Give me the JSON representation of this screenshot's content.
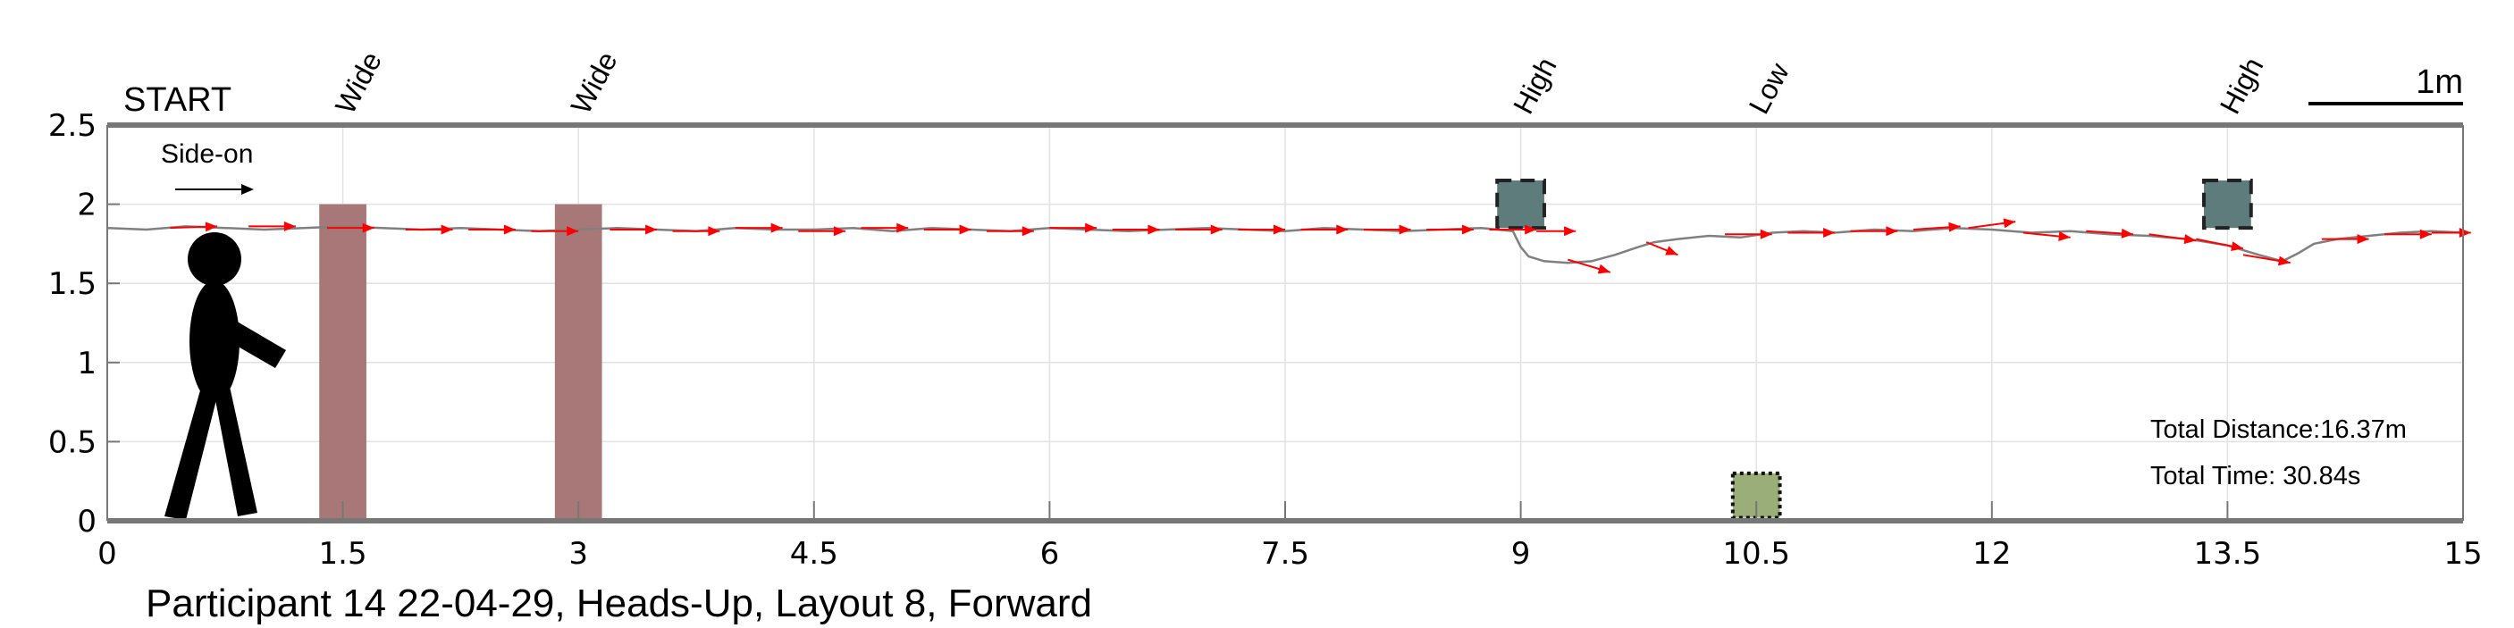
{
  "chart_data": {
    "type": "line",
    "title": "Participant 14 22-04-29, Heads-Up, Layout 8, Forward",
    "xlim": [
      0,
      15
    ],
    "ylim": [
      0,
      2.5
    ],
    "x_ticks": [
      0,
      1.5,
      3,
      4.5,
      6,
      7.5,
      9,
      10.5,
      12,
      13.5,
      15
    ],
    "x_tick_labels": [
      "0",
      "1.5",
      "3",
      "4.5",
      "6",
      "7.5",
      "9",
      "10.5",
      "12",
      "13.5",
      "15"
    ],
    "y_ticks": [
      0,
      0.5,
      1,
      1.5,
      2,
      2.5
    ],
    "y_tick_labels": [
      "0",
      "0.5",
      "1",
      "1.5",
      "2",
      "2.5"
    ],
    "grid": true,
    "start_label": "START",
    "direction_label": "Side-on",
    "scale_bar_label": "1m",
    "scale_bar_length": 1,
    "trajectory": {
      "x": [
        0,
        0.25,
        0.5,
        0.75,
        1,
        1.25,
        1.5,
        1.75,
        2,
        2.25,
        2.5,
        2.75,
        3,
        3.25,
        3.5,
        3.75,
        4,
        4.25,
        4.5,
        4.75,
        5,
        5.25,
        5.5,
        5.75,
        6,
        6.25,
        6.5,
        6.75,
        7,
        7.25,
        7.5,
        7.75,
        8,
        8.25,
        8.5,
        8.75,
        8.95,
        9.0,
        9.05,
        9.15,
        9.3,
        9.45,
        9.6,
        9.75,
        9.85,
        10.0,
        10.2,
        10.4,
        10.6,
        10.8,
        11.0,
        11.25,
        11.5,
        11.75,
        12.0,
        12.25,
        12.5,
        12.75,
        13.0,
        13.25,
        13.5,
        13.7,
        13.85,
        13.95,
        14.05,
        14.2,
        14.4,
        14.6,
        14.8,
        15.0
      ],
      "y": [
        1.85,
        1.84,
        1.86,
        1.85,
        1.84,
        1.85,
        1.86,
        1.85,
        1.84,
        1.85,
        1.84,
        1.83,
        1.84,
        1.85,
        1.84,
        1.83,
        1.85,
        1.84,
        1.84,
        1.85,
        1.83,
        1.85,
        1.84,
        1.83,
        1.85,
        1.84,
        1.83,
        1.84,
        1.85,
        1.84,
        1.83,
        1.85,
        1.84,
        1.83,
        1.84,
        1.85,
        1.83,
        1.73,
        1.67,
        1.64,
        1.63,
        1.64,
        1.68,
        1.73,
        1.76,
        1.78,
        1.8,
        1.79,
        1.82,
        1.83,
        1.82,
        1.84,
        1.83,
        1.85,
        1.84,
        1.82,
        1.83,
        1.81,
        1.8,
        1.78,
        1.74,
        1.68,
        1.64,
        1.69,
        1.75,
        1.78,
        1.8,
        1.82,
        1.83,
        1.82
      ]
    },
    "velocity_arrows": [
      [
        0.4,
        1.85,
        0.3,
        0.01
      ],
      [
        0.9,
        1.86,
        0.3,
        0.0
      ],
      [
        1.4,
        1.85,
        0.3,
        0.0
      ],
      [
        1.9,
        1.84,
        0.3,
        0.0
      ],
      [
        2.3,
        1.84,
        0.3,
        0.0
      ],
      [
        2.7,
        1.83,
        0.3,
        0.0
      ],
      [
        3.2,
        1.84,
        0.3,
        0.0
      ],
      [
        3.6,
        1.83,
        0.3,
        0.0
      ],
      [
        4.0,
        1.85,
        0.3,
        0.0
      ],
      [
        4.4,
        1.83,
        0.3,
        0.0
      ],
      [
        4.8,
        1.85,
        0.3,
        0.0
      ],
      [
        5.2,
        1.84,
        0.3,
        0.0
      ],
      [
        5.6,
        1.83,
        0.3,
        0.0
      ],
      [
        6.0,
        1.85,
        0.3,
        0.0
      ],
      [
        6.4,
        1.84,
        0.3,
        0.0
      ],
      [
        6.8,
        1.84,
        0.3,
        0.0
      ],
      [
        7.2,
        1.84,
        0.3,
        0.0
      ],
      [
        7.6,
        1.84,
        0.3,
        0.0
      ],
      [
        8.0,
        1.84,
        0.3,
        0.0
      ],
      [
        8.4,
        1.84,
        0.3,
        0.0
      ],
      [
        8.8,
        1.84,
        0.3,
        0.0
      ],
      [
        9.1,
        1.83,
        0.25,
        0.0
      ],
      [
        9.3,
        1.65,
        0.27,
        -0.08
      ],
      [
        9.8,
        1.76,
        0.2,
        -0.08
      ],
      [
        10.3,
        1.81,
        0.3,
        0.0
      ],
      [
        10.7,
        1.82,
        0.3,
        0.0
      ],
      [
        11.1,
        1.83,
        0.3,
        0.0
      ],
      [
        11.5,
        1.84,
        0.3,
        0.02
      ],
      [
        11.85,
        1.85,
        0.3,
        0.04
      ],
      [
        12.2,
        1.82,
        0.3,
        -0.03
      ],
      [
        12.6,
        1.83,
        0.3,
        -0.02
      ],
      [
        13.0,
        1.81,
        0.3,
        -0.04
      ],
      [
        13.3,
        1.78,
        0.3,
        -0.06
      ],
      [
        13.6,
        1.68,
        0.3,
        -0.05
      ],
      [
        14.1,
        1.78,
        0.3,
        0.0
      ],
      [
        14.5,
        1.81,
        0.3,
        0.0
      ],
      [
        14.8,
        1.82,
        0.25,
        0.0
      ]
    ],
    "obstacles": [
      {
        "kind": "wide",
        "label": "Wide",
        "x0": 1.35,
        "x1": 1.65,
        "y0": 0,
        "y1": 2.0,
        "color": "#a87878"
      },
      {
        "kind": "wide",
        "label": "Wide",
        "x0": 2.85,
        "x1": 3.15,
        "y0": 0,
        "y1": 2.0,
        "color": "#a87878"
      },
      {
        "kind": "high",
        "label": "High",
        "x0": 8.85,
        "x1": 9.15,
        "y0": 1.85,
        "y1": 2.15,
        "color": "#5f7c7c"
      },
      {
        "kind": "low",
        "label": "Low",
        "x0": 10.35,
        "x1": 10.65,
        "y0": 0.02,
        "y1": 0.3,
        "color": "#9aae7a"
      },
      {
        "kind": "high",
        "label": "High",
        "x0": 13.35,
        "x1": 13.65,
        "y0": 1.85,
        "y1": 2.15,
        "color": "#5f7c7c"
      }
    ],
    "annotations": {
      "total_distance": "Total Distance:16.37m",
      "total_time": "Total Time: 30.84s"
    },
    "colors": {
      "trajectory": "#808080",
      "arrows": "#ff0000",
      "axis": "#777777",
      "grid": "#e2e2e2"
    }
  }
}
